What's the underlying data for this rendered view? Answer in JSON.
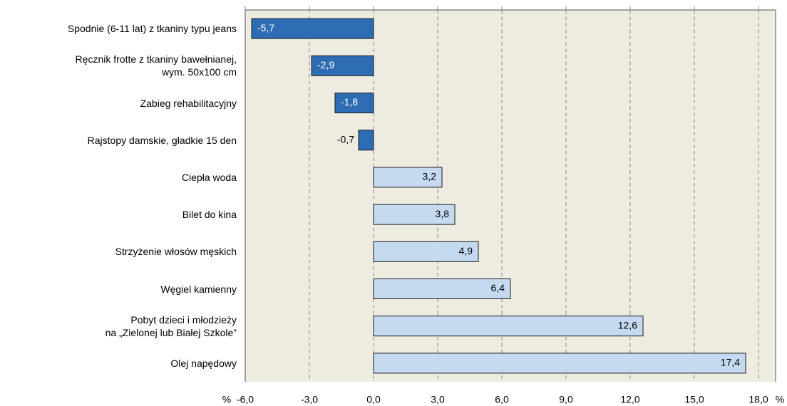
{
  "chart_data": {
    "type": "barh",
    "categories": [
      "Spodnie (6-11 lat)  z tkaniny typu jeans",
      "Ręcznik frotte z tkaniny bawełnianej,\nwym. 50x100 cm",
      "Zabieg rehabilitacyjny",
      "Rajstopy damskie, gładkie 15 den",
      "Ciepła woda",
      "Bilet do kina",
      "Strzyżenie włosów męskich",
      "Węgiel kamienny",
      "Pobyt dzieci i młodzieży\nna „Zielonej lub Białej Szkole”",
      "Olej napędowy"
    ],
    "values": [
      -5.7,
      -2.9,
      -1.8,
      -0.7,
      3.2,
      3.8,
      4.9,
      6.4,
      12.6,
      17.4
    ],
    "value_labels": [
      "-5,7",
      "-2,9",
      "-1,8",
      "-0,7",
      "3,2",
      "3,8",
      "4,9",
      "6,4",
      "12,6",
      "17,4"
    ],
    "color_negative": "#2e6db4",
    "color_positive": "#c5daf0",
    "xlabel": "%",
    "xlim": [
      -6,
      18.8
    ],
    "xticks": [
      {
        "value": -6,
        "label": "-6,0"
      },
      {
        "value": -3,
        "label": "-3,0"
      },
      {
        "value": 0,
        "label": "0,0"
      },
      {
        "value": 3,
        "label": "3,0"
      },
      {
        "value": 6,
        "label": "6,0"
      },
      {
        "value": 9,
        "label": "9,0"
      },
      {
        "value": 12,
        "label": "12,0"
      },
      {
        "value": 15,
        "label": "15,0"
      },
      {
        "value": 18,
        "label": "18,0"
      }
    ],
    "grid": true
  }
}
